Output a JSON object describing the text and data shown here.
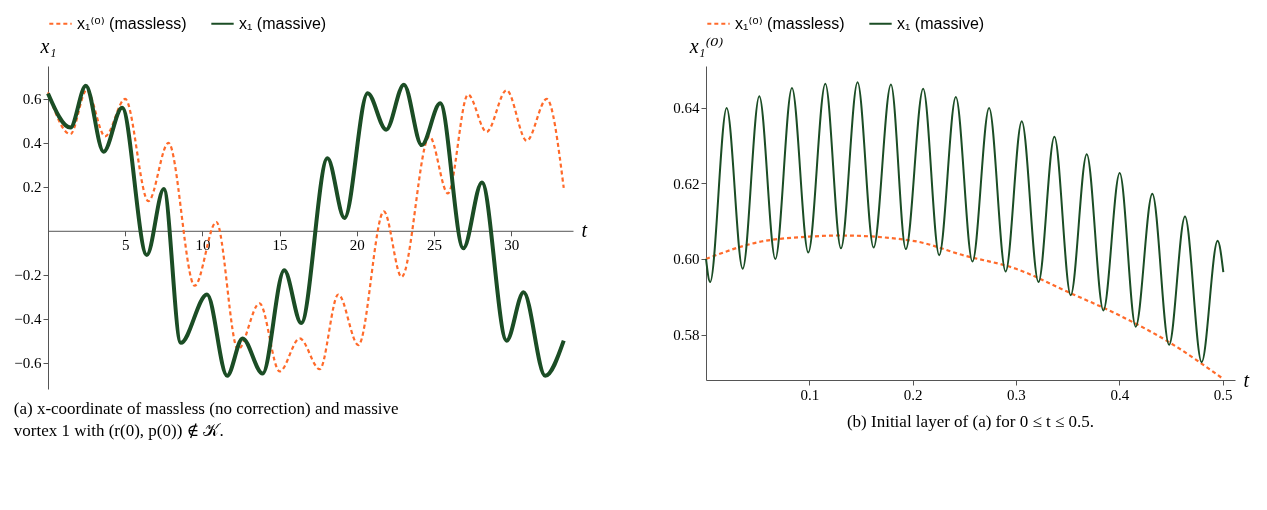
{
  "chart_data": [
    {
      "type": "line",
      "xlabel": "t",
      "ylabel": "x₁",
      "xlim": [
        0,
        34
      ],
      "xticks": [
        5,
        10,
        15,
        20,
        25,
        30
      ],
      "ylim": [
        -0.72,
        0.75
      ],
      "yticks": [
        -0.6,
        -0.4,
        -0.2,
        0.2,
        0.4,
        0.6
      ],
      "legend": "top",
      "grid": false,
      "annotations": [
        "(a) x-coordinate of massless (no correction) and massive vortex 1 with (r(0), p(0)) ∉ 𝒦."
      ],
      "series": [
        {
          "name": "x₁⁽⁰⁾ (massless)",
          "color": "#ff6a2a",
          "line_style": "dashed",
          "x": [
            0,
            1.45,
            2.5,
            3.7,
            5.0,
            6.5,
            7.8,
            9.5,
            10.9,
            12.3,
            13.7,
            15.0,
            16.3,
            17.6,
            18.8,
            20.1,
            21.75,
            22.9,
            24.7,
            25.9,
            27.2,
            28.4,
            29.7,
            31.0,
            32.3,
            33.4
          ],
          "values": [
            0.63,
            0.44,
            0.64,
            0.43,
            0.6,
            0.135,
            0.4,
            -0.25,
            0.04,
            -0.54,
            -0.33,
            -0.64,
            -0.49,
            -0.63,
            -0.29,
            -0.52,
            0.088,
            -0.21,
            0.43,
            0.17,
            0.62,
            0.45,
            0.64,
            0.41,
            0.6,
            0.195
          ]
        },
        {
          "name": "x₁ (massive)",
          "color": "#1b4d25",
          "line_style": "solid",
          "x": [
            0,
            1.45,
            2.45,
            3.6,
            4.8,
            6.4,
            7.5,
            8.6,
            10.3,
            11.6,
            12.6,
            13.9,
            15.3,
            16.4,
            18.1,
            19.2,
            20.7,
            21.9,
            23.05,
            24.2,
            25.4,
            26.9,
            28.1,
            29.7,
            30.8,
            32.2,
            33.4
          ],
          "values": [
            0.625,
            0.47,
            0.66,
            0.36,
            0.56,
            -0.11,
            0.19,
            -0.51,
            -0.29,
            -0.66,
            -0.49,
            -0.65,
            -0.18,
            -0.42,
            0.33,
            0.058,
            0.626,
            0.46,
            0.665,
            0.39,
            0.58,
            -0.08,
            0.22,
            -0.5,
            -0.28,
            -0.66,
            -0.5
          ]
        }
      ]
    },
    {
      "type": "line",
      "xlabel": "t",
      "ylabel": "x₁⁽⁰⁾",
      "xlim": [
        0,
        0.512
      ],
      "xticks": [
        0.1,
        0.2,
        0.3,
        0.4,
        0.5
      ],
      "ylim": [
        0.568,
        0.651
      ],
      "yticks": [
        0.58,
        {
          "value": 0.6,
          "label": "0.60"
        },
        0.62,
        0.64
      ],
      "legend": "top",
      "grid": false,
      "annotations": [
        "(b) Initial layer of (a) for 0 ≤ t ≤ 0.5."
      ],
      "series": [
        {
          "name": "x₁⁽⁰⁾ (massless)",
          "color": "#ff6a2a",
          "line_style": "dashed",
          "x": [
            0,
            0.05,
            0.1,
            0.13,
            0.2,
            0.25,
            0.3,
            0.35,
            0.4,
            0.45,
            0.5
          ],
          "values": [
            0.6,
            0.6044,
            0.6059,
            0.6062,
            0.6048,
            0.6009,
            0.5974,
            0.5913,
            0.5851,
            0.5777,
            0.5684
          ]
        },
        {
          "name": "x₁ (massive)",
          "color": "#1b4d25",
          "line_style": "solid",
          "x": [
            0,
            0.004,
            0.02,
            0.0355,
            0.0516,
            0.0671,
            0.0832,
            0.099,
            0.1155,
            0.1306,
            0.1467,
            0.1622,
            0.179,
            0.1934,
            0.2102,
            0.2257,
            0.2418,
            0.2579,
            0.274,
            0.29,
            0.3056,
            0.3218,
            0.3372,
            0.353,
            0.3685,
            0.3846,
            0.4004,
            0.4159,
            0.432,
            0.4482,
            0.4636,
            0.4797,
            0.4952,
            0.5007
          ],
          "values": [
            0.6,
            0.5939,
            0.6399,
            0.5974,
            0.643,
            0.6,
            0.6452,
            0.6017,
            0.6463,
            0.6028,
            0.6467,
            0.603,
            0.6461,
            0.6026,
            0.645,
            0.601,
            0.6428,
            0.5993,
            0.6399,
            0.5967,
            0.6364,
            0.5939,
            0.6323,
            0.5904,
            0.6277,
            0.5864,
            0.6227,
            0.5821,
            0.6172,
            0.5773,
            0.6112,
            0.5727,
            0.6048,
            0.5965
          ]
        }
      ]
    }
  ]
}
